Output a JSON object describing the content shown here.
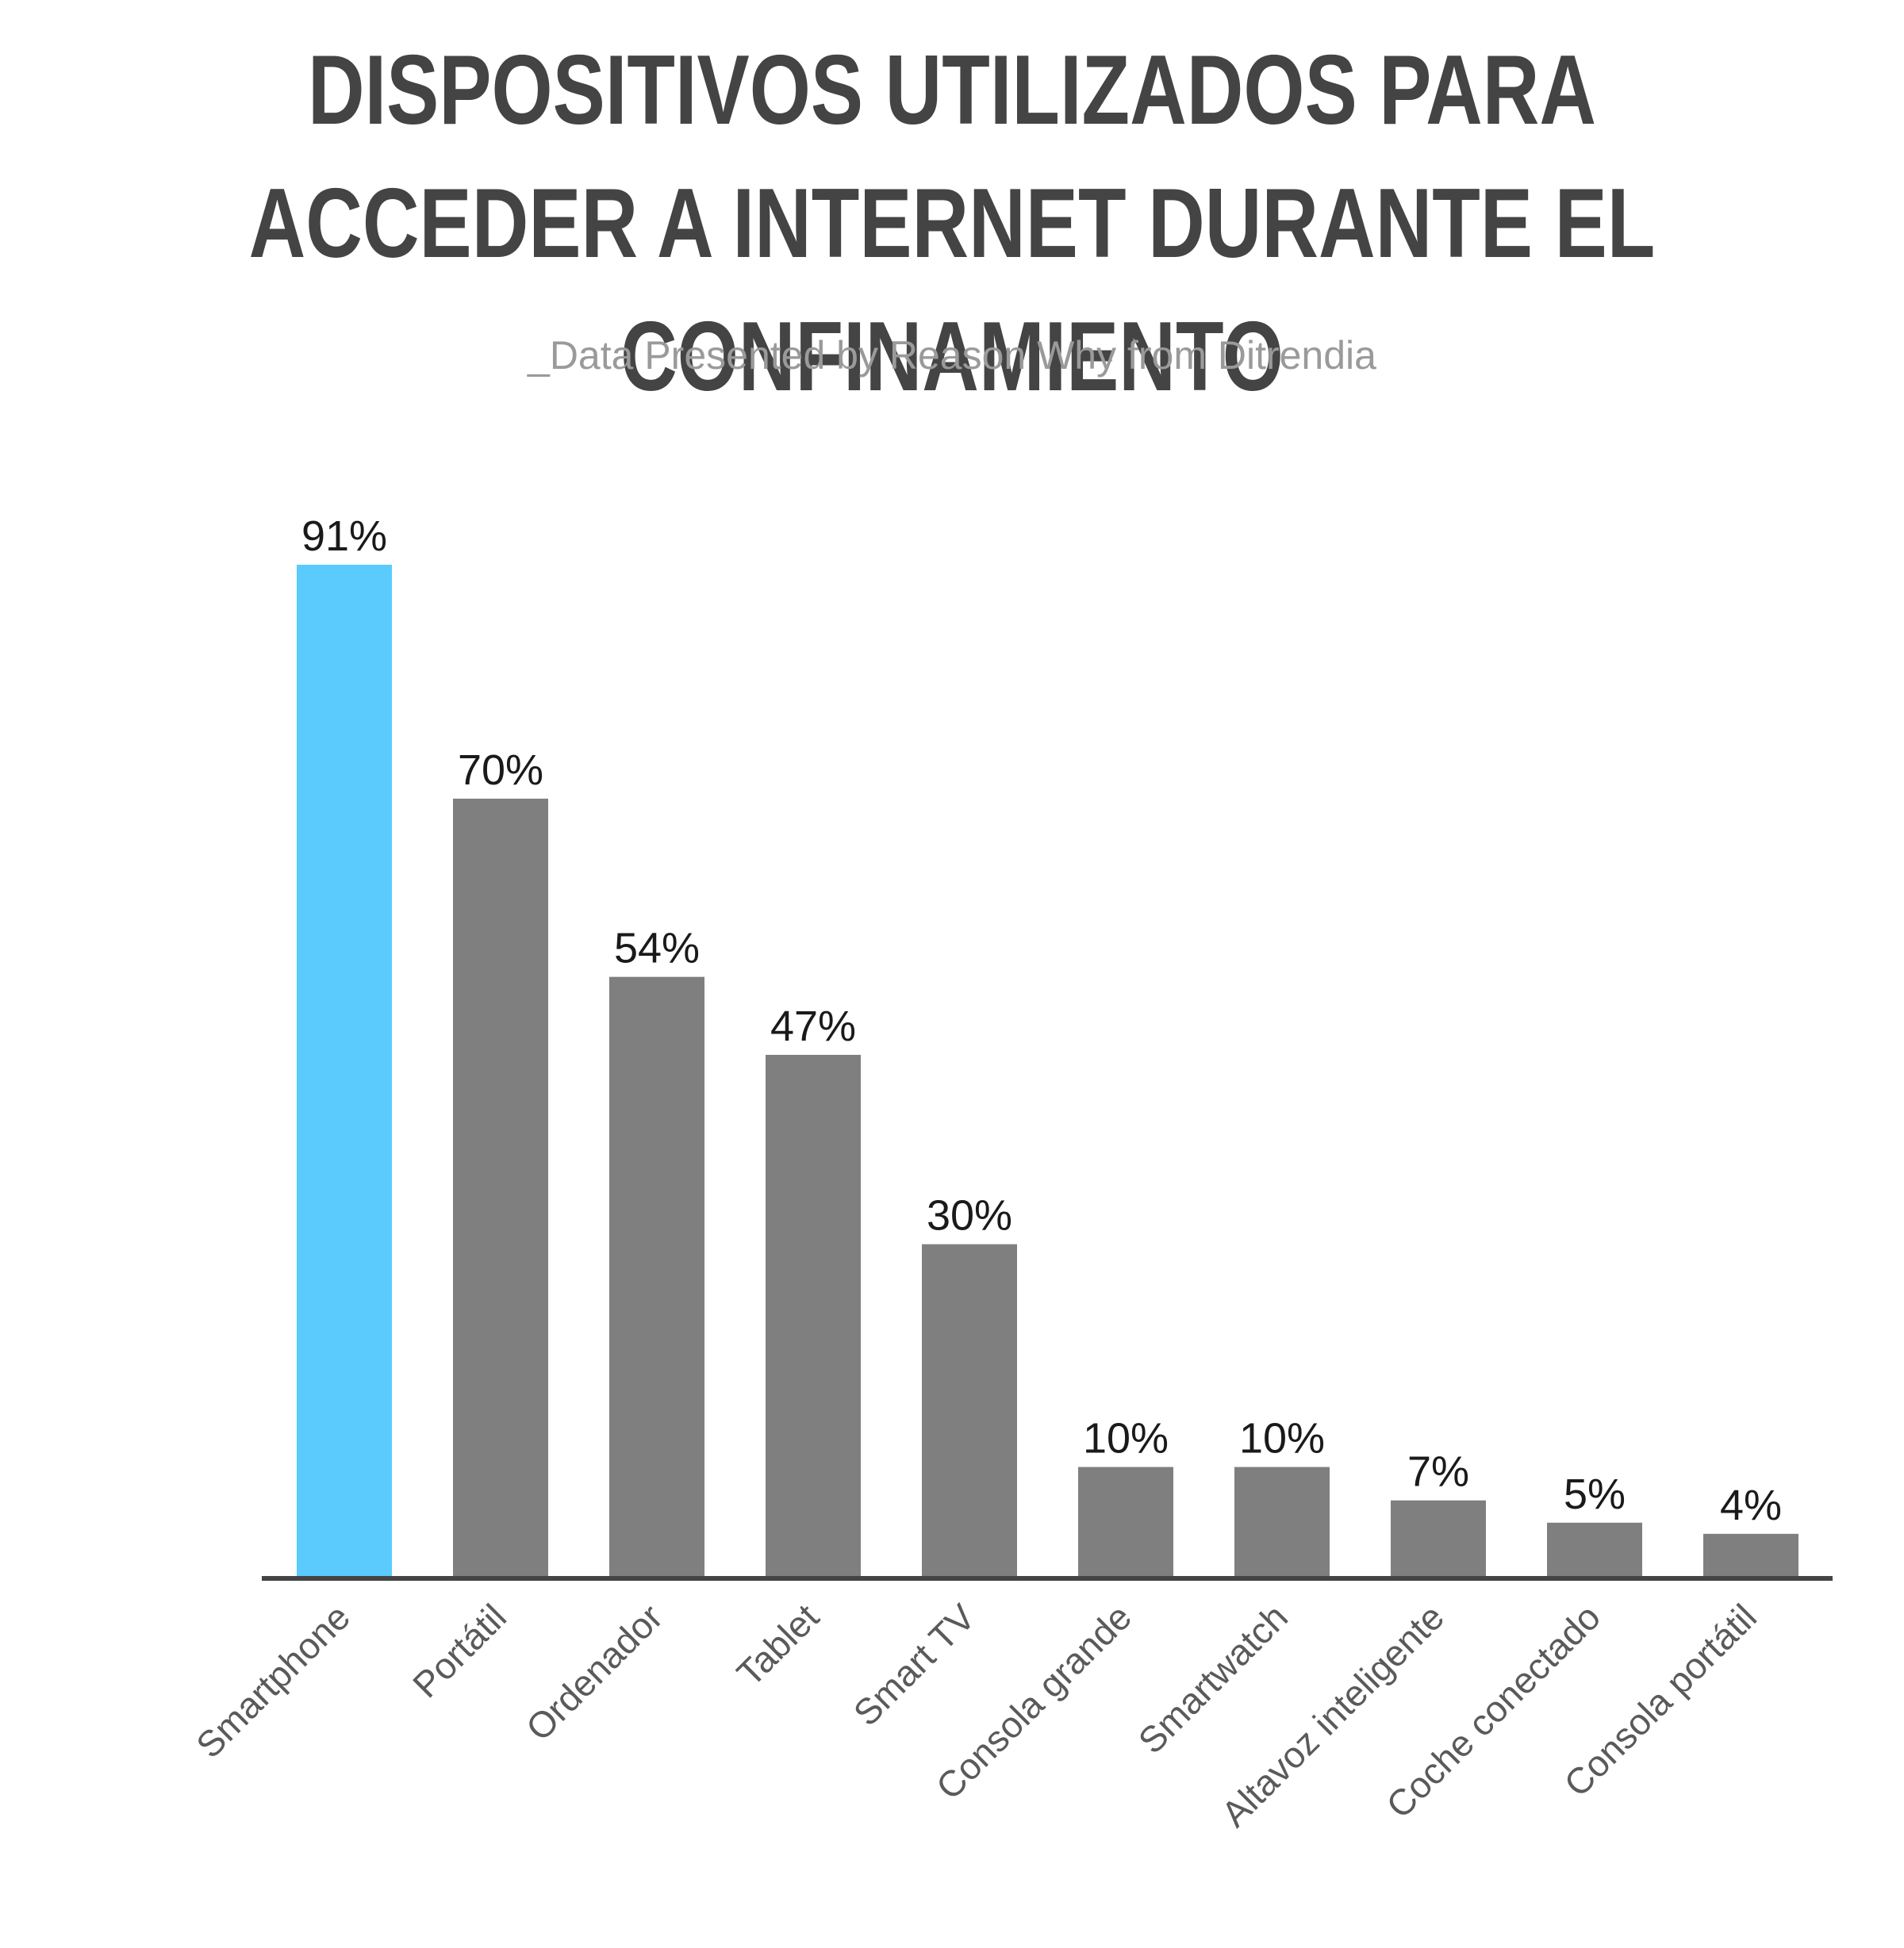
{
  "title": "DISPOSITIVOS UTILIZADOS PARA ACCEDER A INTERNET DURANTE EL CONFINAMIENTO",
  "subtitle": "_Data Presented by Reason Why from Ditrendia",
  "colors": {
    "highlight": "#5acbfc",
    "bar": "#7f7f7f",
    "axis": "#444444"
  },
  "chart_data": {
    "type": "bar",
    "title": "DISPOSITIVOS UTILIZADOS PARA ACCEDER A INTERNET DURANTE EL CONFINAMIENTO",
    "subtitle": "_Data Presented by Reason Why from Ditrendia",
    "categories": [
      "Smartphone",
      "Portátil",
      "Ordenador",
      "Tablet",
      "Smart TV",
      "Consola grande",
      "Smartwatch",
      "Altavoz inteligente",
      "Coche conectado",
      "Consola portátil"
    ],
    "values": [
      91,
      70,
      54,
      47,
      30,
      10,
      10,
      7,
      5,
      4
    ],
    "value_labels": [
      "91%",
      "70%",
      "54%",
      "47%",
      "30%",
      "10%",
      "10%",
      "7%",
      "5%",
      "4%"
    ],
    "highlighted_category": "Smartphone",
    "ylim": [
      0,
      91
    ],
    "grid": false,
    "xlabel": "",
    "ylabel": ""
  }
}
